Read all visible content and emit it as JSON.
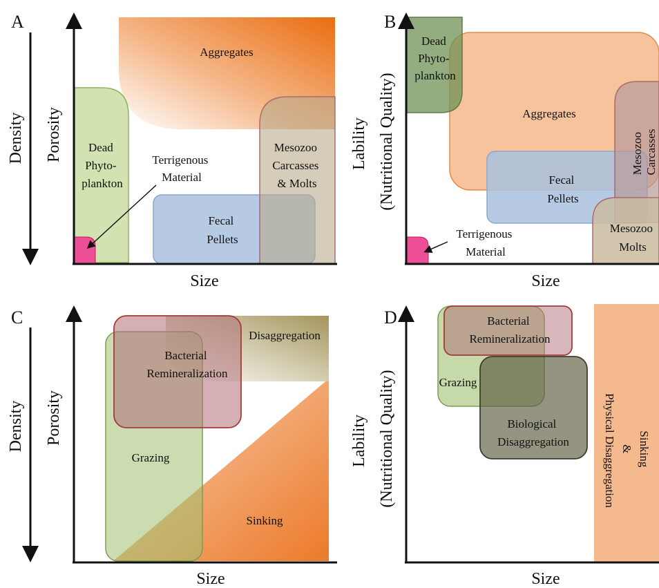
{
  "panels": {
    "A": {
      "letter": "A",
      "outer_axis": "Density",
      "inner_axis": "Porosity",
      "x_axis": "Size",
      "regions": {
        "aggregates": "Aggregates",
        "dead_phyto": [
          "Dead",
          "Phyto-",
          "plankton"
        ],
        "terrigenous": [
          "Terrigenous",
          "Material"
        ],
        "mesozoo": [
          "Mesozoo",
          "Carcasses",
          "& Molts"
        ],
        "fecal": [
          "Fecal",
          "Pellets"
        ]
      }
    },
    "B": {
      "letter": "B",
      "y_axis": [
        "Lability",
        "(Nutritional Quality)"
      ],
      "x_axis": "Size",
      "regions": {
        "dead_phyto": [
          "Dead",
          "Phyto-",
          "plankton"
        ],
        "aggregates": "Aggregates",
        "mesozoo_carcasses": [
          "Mesozoo",
          "Carcasses"
        ],
        "fecal": [
          "Fecal",
          "Pellets"
        ],
        "mesozoo_molts": [
          "Mesozoo",
          "Molts"
        ],
        "terrigenous": [
          "Terrigenous",
          "Material"
        ]
      }
    },
    "C": {
      "letter": "C",
      "outer_axis": "Density",
      "inner_axis": "Porosity",
      "x_axis": "Size",
      "regions": {
        "disaggregation": "Disaggregation",
        "bacterial": [
          "Bacterial",
          "Remineralization"
        ],
        "grazing": "Grazing",
        "sinking": "Sinking"
      }
    },
    "D": {
      "letter": "D",
      "y_axis": [
        "Lability",
        "(Nutritional Quality)"
      ],
      "x_axis": "Size",
      "regions": {
        "bacterial": [
          "Bacterial",
          "Remineralization"
        ],
        "grazing": "Grazing",
        "biological": [
          "Biological",
          "Disaggregation"
        ],
        "sinking": [
          "Sinking",
          "&",
          "Physical Disaggregation"
        ]
      }
    }
  },
  "colors": {
    "aggregate_orange": "#ec7a2b",
    "aggregate_light": "#f4b98c",
    "phyto_green": "#cde0a8",
    "phyto_dark": "#8aa472",
    "fecal_blue": "#a9c1df",
    "mesozoo_tan": "#c9bba0",
    "bacteria_red": "#c89aa0",
    "biological_olive": "#8a8670",
    "terrigenous_pink": "#ee4f96"
  }
}
